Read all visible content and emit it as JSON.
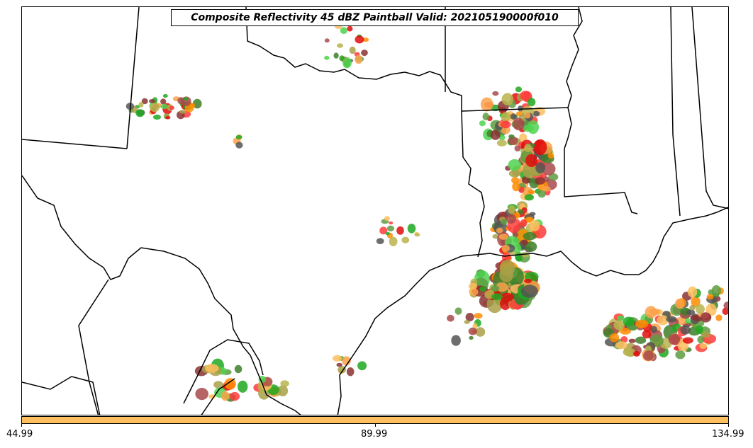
{
  "title": "Composite Reflectivity 45 dBZ Paintball Valid: 202105190000f010",
  "colorbar": {
    "color": "#fdbf5f",
    "ticks": [
      "44.99",
      "89.99",
      "134.99"
    ]
  },
  "map": {
    "background": "#ffffff",
    "boundary_color": "#000000"
  },
  "paintball_colors": [
    "#ff3b3b",
    "#e10d0d",
    "#ff8c00",
    "#fca14a",
    "#fdbf5f",
    "#4fd44f",
    "#20a820",
    "#5e9c42",
    "#3e7f2a",
    "#b9b44e",
    "#a8a048",
    "#a84a4a",
    "#8a3232",
    "#555555"
  ]
}
